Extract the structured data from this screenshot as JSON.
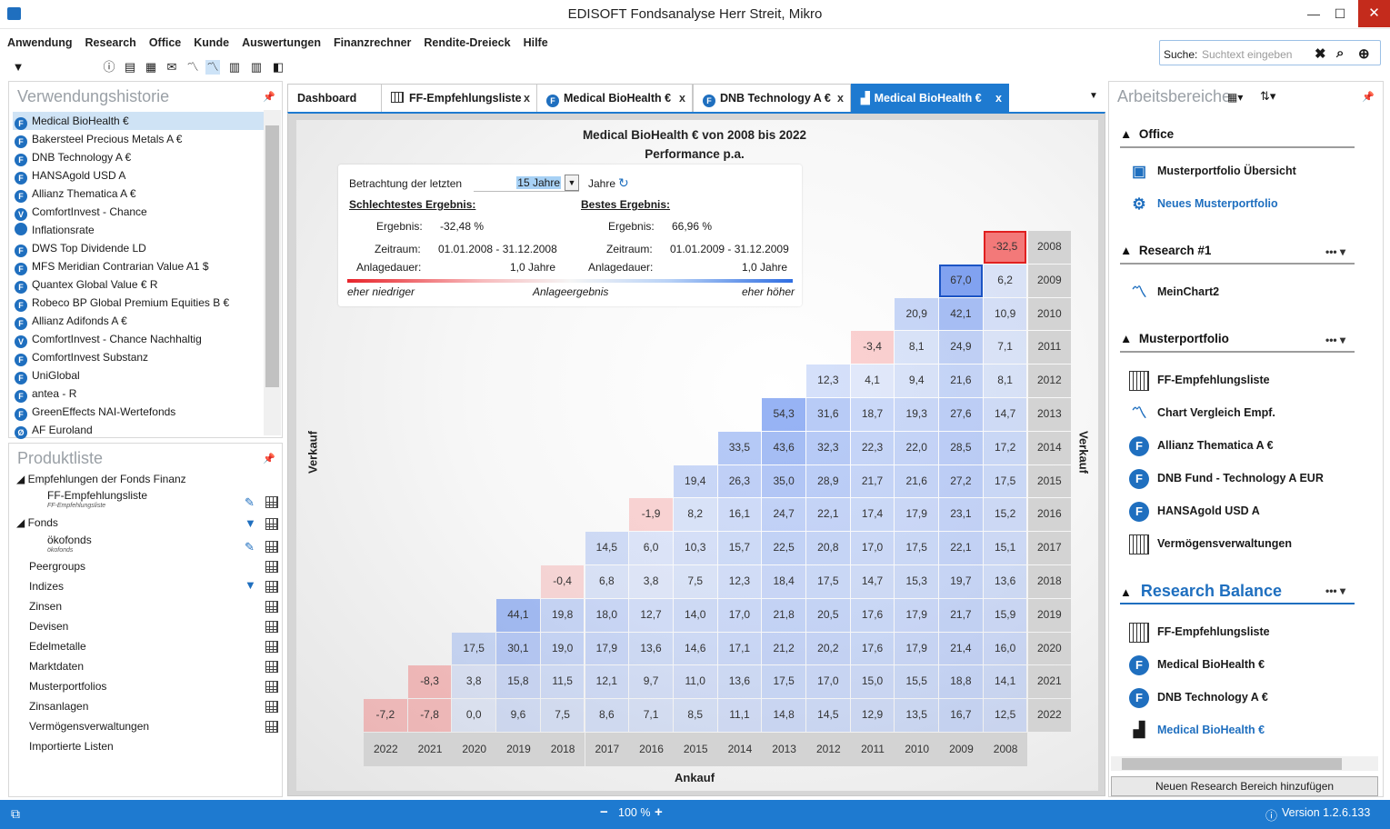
{
  "window": {
    "title": "EDISOFT Fondsanalyse Herr Streit, Mikro",
    "minimize": "—",
    "maximize": "☐",
    "close": "✕"
  },
  "menu": [
    "Anwendung",
    "Research",
    "Office",
    "Kunde",
    "Auswertungen",
    "Finanzrechner",
    "Rendite-Dreieck",
    "Hilfe"
  ],
  "search": {
    "label": "Suche:",
    "placeholder": "Suchtext eingeben"
  },
  "history": {
    "title": "Verwendungshistorie",
    "items": [
      "Medical BioHealth €",
      "Bakersteel Precious Metals A €",
      "DNB Technology A €",
      "HANSAgold USD A",
      "Allianz Thematica A €",
      "ComfortInvest - Chance",
      "Inflationsrate",
      "DWS Top Dividende LD",
      "MFS Meridian Contrarian Value A1 $",
      "Quantex Global Value € R",
      "Robeco BP Global Premium Equities B €",
      "Allianz Adifonds A €",
      "ComfortInvest - Chance Nachhaltig",
      "ComfortInvest Substanz",
      "UniGlobal",
      "antea - R",
      "GreenEffects NAI-Wertefonds",
      "AF Euroland"
    ],
    "icons": [
      "F",
      "F",
      "F",
      "F",
      "F",
      "V",
      "",
      "F",
      "F",
      "F",
      "F",
      "F",
      "V",
      "F",
      "F",
      "F",
      "F",
      "Ø"
    ]
  },
  "products": {
    "title": "Produktliste",
    "group1": "Empfehlungen der Fonds Finanz",
    "ff_list": "FF-Empfehlungsliste",
    "ff_list_sub": "FF-Empfehlungsliste",
    "group2": "Fonds",
    "oeko": "ökofonds",
    "oeko_sub": "ökofonds",
    "items": [
      "Peergroups",
      "Indizes",
      "Zinsen",
      "Devisen",
      "Edelmetalle",
      "Marktdaten",
      "Musterportfolios",
      "Zinsanlagen",
      "Vermögensverwaltungen",
      "Importierte Listen"
    ]
  },
  "tabs": [
    {
      "label": "Dashboard"
    },
    {
      "label": "FF-Empfehlungsliste"
    },
    {
      "label": "Medical BioHealth €"
    },
    {
      "label": "DNB Technology A €"
    },
    {
      "label": "Medical BioHealth €"
    }
  ],
  "chart_data": {
    "type": "heatmap",
    "title": "Medical BioHealth € von 2008 bis 2022",
    "subtitle": "Performance p.a.",
    "xlabel": "Ankauf",
    "ylabel": "Verkauf",
    "ylabel_right": "Verkauf",
    "x": [
      "2022",
      "2021",
      "2020",
      "2019",
      "2018",
      "2017",
      "2016",
      "2015",
      "2014",
      "2013",
      "2012",
      "2011",
      "2010",
      "2009",
      "2008"
    ],
    "y": [
      "2008",
      "2009",
      "2010",
      "2011",
      "2012",
      "2013",
      "2014",
      "2015",
      "2016",
      "2017",
      "2018",
      "2019",
      "2020",
      "2021",
      "2022"
    ],
    "rows": [
      [
        "-32,5"
      ],
      [
        "67,0",
        "6,2"
      ],
      [
        "20,9",
        "42,1",
        "10,9"
      ],
      [
        "-3,4",
        "8,1",
        "24,9",
        "7,1"
      ],
      [
        "12,3",
        "4,1",
        "9,4",
        "21,6",
        "8,1"
      ],
      [
        "54,3",
        "31,6",
        "18,7",
        "19,3",
        "27,6",
        "14,7"
      ],
      [
        "33,5",
        "43,6",
        "32,3",
        "22,3",
        "22,0",
        "28,5",
        "17,2"
      ],
      [
        "19,4",
        "26,3",
        "35,0",
        "28,9",
        "21,7",
        "21,6",
        "27,2",
        "17,5"
      ],
      [
        "-1,9",
        "8,2",
        "16,1",
        "24,7",
        "22,1",
        "17,4",
        "17,9",
        "23,1",
        "15,2"
      ],
      [
        "14,5",
        "6,0",
        "10,3",
        "15,7",
        "22,5",
        "20,8",
        "17,0",
        "17,5",
        "22,1",
        "15,1"
      ],
      [
        "-0,4",
        "6,8",
        "3,8",
        "7,5",
        "12,3",
        "18,4",
        "17,5",
        "14,7",
        "15,3",
        "19,7",
        "13,6"
      ],
      [
        "44,1",
        "19,8",
        "18,0",
        "12,7",
        "14,0",
        "17,0",
        "21,8",
        "20,5",
        "17,6",
        "17,9",
        "21,7",
        "15,9"
      ],
      [
        "17,5",
        "30,1",
        "19,0",
        "17,9",
        "13,6",
        "14,6",
        "17,1",
        "21,2",
        "20,2",
        "17,6",
        "17,9",
        "21,4",
        "16,0"
      ],
      [
        "-8,3",
        "3,8",
        "15,8",
        "11,5",
        "12,1",
        "9,7",
        "11,0",
        "13,6",
        "17,5",
        "17,0",
        "15,0",
        "15,5",
        "18,8",
        "14,1"
      ],
      [
        "-7,2",
        "-7,8",
        "0,0",
        "9,6",
        "7,5",
        "8,6",
        "7,1",
        "8,5",
        "11,1",
        "14,8",
        "14,5",
        "12,9",
        "13,5",
        "16,7",
        "12,5"
      ]
    ],
    "legend": {
      "low": "eher niedriger",
      "mid": "Anlageergebnis",
      "high": "eher höher"
    }
  },
  "info": {
    "betrachtung": "Betrachtung der letzten",
    "jahre_value": "15 Jahre",
    "jahre_label": "Jahre",
    "worst": "Schlechtestes Ergebnis:",
    "best": "Bestes Ergebnis:",
    "ergebnis": "Ergebnis:",
    "zeitraum": "Zeitraum:",
    "anlagedauer": "Anlagedauer:",
    "worst_val": "-32,48 %",
    "worst_zeit": "01.01.2008 - 31.12.2008",
    "worst_dauer": "1,0 Jahre",
    "best_val": "66,96 %",
    "best_zeit": "01.01.2009 - 31.12.2009",
    "best_dauer": "1,0 Jahre"
  },
  "workspace": {
    "title": "Arbeitsbereiche",
    "s1": "Office",
    "s1_items": [
      "Musterportfolio Übersicht",
      "Neues Musterportfolio"
    ],
    "s2": "Research #1",
    "s2_items": [
      "MeinChart2"
    ],
    "s3": "Musterportfolio",
    "s3_items": [
      "FF-Empfehlungsliste",
      "Chart Vergleich Empf.",
      "Allianz Thematica A €",
      "DNB Fund - Technology A EUR",
      "HANSAgold USD A",
      "Vermögensverwaltungen"
    ],
    "s4": "Research Balance",
    "s4_items": [
      "FF-Empfehlungsliste",
      "Medical BioHealth €",
      "DNB Technology A €",
      "Medical BioHealth €"
    ],
    "add": "Neuen Research Bereich hinzufügen",
    "more": "•••"
  },
  "status": {
    "zoom": "100 %",
    "version": "Version 1.2.6.133"
  },
  "colors": {
    "accent": "#1e7ad0",
    "neg": "#e02020",
    "pos": "#2f6ee2"
  }
}
